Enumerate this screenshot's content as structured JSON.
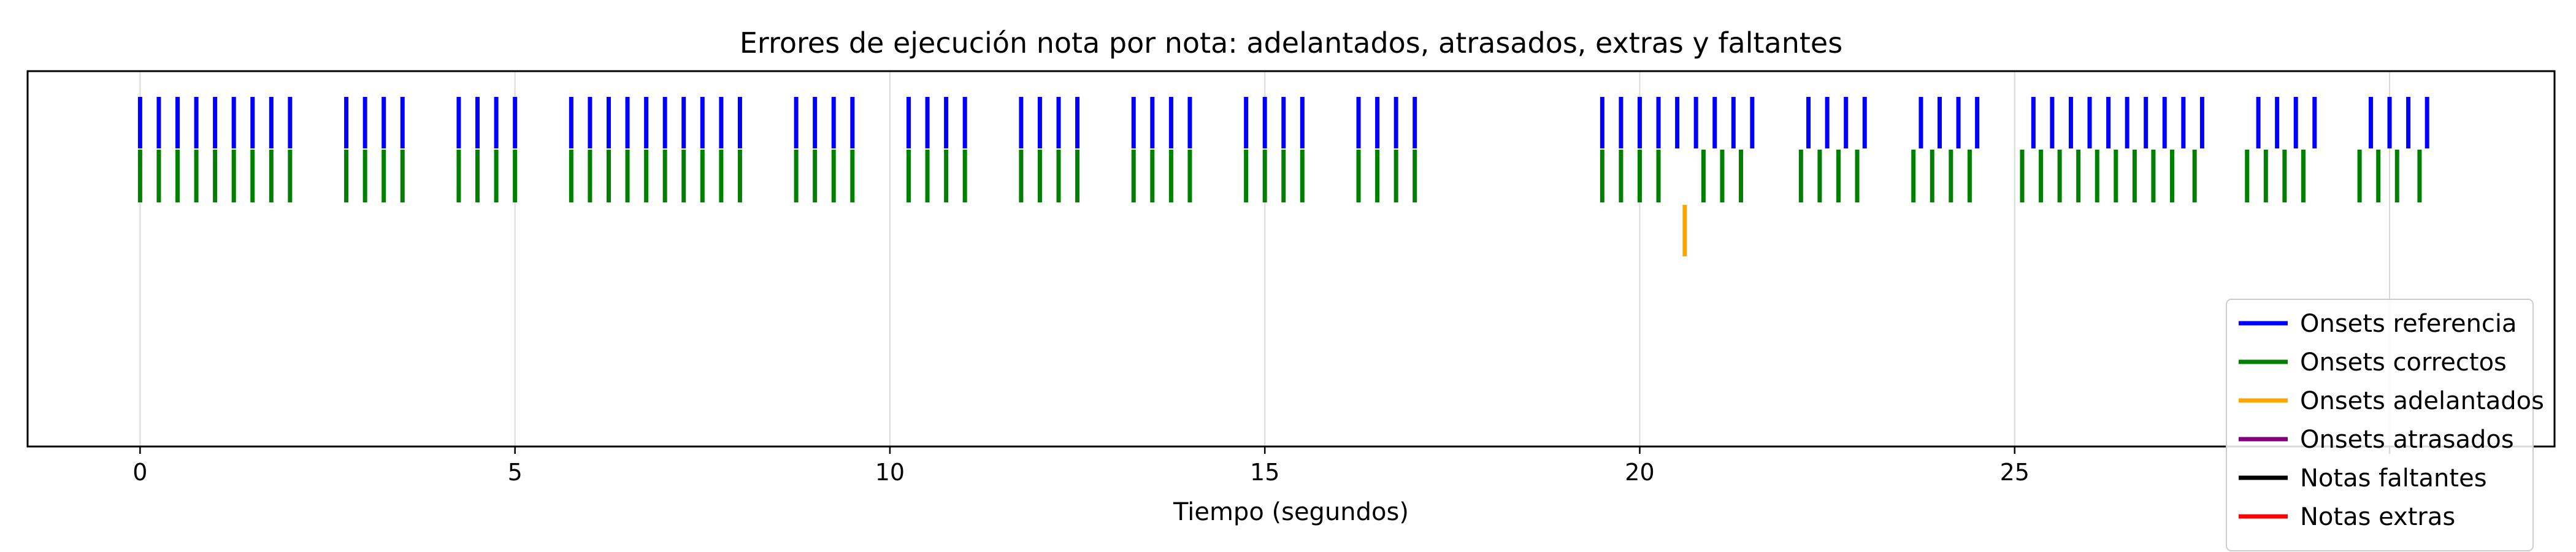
{
  "chart_data": {
    "type": "event-raster",
    "title": "Errores de ejecución nota por nota: adelantados, atrasados, extras y faltantes",
    "xlabel": "Tiempo (segundos)",
    "ylabel": "",
    "xlim": [
      -1.5,
      32.2
    ],
    "xticks": [
      0,
      5,
      10,
      15,
      20,
      25,
      30
    ],
    "xtick_labels": [
      "0",
      "5",
      "10",
      "15",
      "20",
      "25",
      ""
    ],
    "grid": "vertical",
    "legend_position": "bottom-right",
    "colors": {
      "reference": "#0000ff",
      "correct": "#008000",
      "early": "#ffa500",
      "late": "#800080",
      "missing": "#000000",
      "extra": "#ff0000"
    },
    "series": [
      {
        "key": "reference",
        "name": "Onsets referencia",
        "color": "#0000ff",
        "x": [
          0.0,
          0.25,
          0.5,
          0.75,
          1.0,
          1.25,
          1.5,
          1.75,
          2.0,
          2.75,
          3.0,
          3.25,
          3.5,
          4.25,
          4.5,
          4.75,
          5.0,
          5.75,
          6.0,
          6.25,
          6.5,
          6.75,
          7.0,
          7.25,
          7.5,
          7.75,
          8.0,
          8.75,
          9.0,
          9.25,
          9.5,
          10.25,
          10.5,
          10.75,
          11.0,
          11.75,
          12.0,
          12.25,
          12.5,
          13.25,
          13.5,
          13.75,
          14.0,
          14.75,
          15.0,
          15.25,
          15.5,
          16.25,
          16.5,
          16.75,
          17.0,
          19.5,
          19.75,
          20.0,
          20.25,
          20.5,
          20.75,
          21.0,
          21.25,
          21.5,
          22.25,
          22.5,
          22.75,
          23.0,
          23.75,
          24.0,
          24.25,
          24.5,
          25.25,
          25.5,
          25.75,
          26.0,
          26.25,
          26.5,
          26.75,
          27.0,
          27.25,
          27.5,
          28.25,
          28.5,
          28.75,
          29.0,
          29.75,
          30.0,
          30.25,
          30.5
        ]
      },
      {
        "key": "correct",
        "name": "Onsets correctos",
        "color": "#008000",
        "x": [
          0.0,
          0.25,
          0.5,
          0.75,
          1.0,
          1.25,
          1.5,
          1.75,
          2.0,
          2.75,
          3.0,
          3.25,
          3.5,
          4.25,
          4.5,
          4.75,
          5.0,
          5.75,
          6.0,
          6.25,
          6.5,
          6.75,
          7.0,
          7.25,
          7.5,
          7.75,
          8.0,
          8.75,
          9.0,
          9.25,
          9.5,
          10.25,
          10.5,
          10.75,
          11.0,
          11.75,
          12.0,
          12.25,
          12.5,
          13.25,
          13.5,
          13.75,
          14.0,
          14.75,
          15.0,
          15.25,
          15.5,
          16.25,
          16.5,
          16.75,
          17.0,
          19.5,
          19.75,
          20.0,
          20.25,
          20.85,
          21.1,
          21.35,
          22.15,
          22.4,
          22.65,
          22.9,
          23.65,
          23.9,
          24.15,
          24.4,
          25.1,
          25.35,
          25.6,
          25.85,
          26.1,
          26.35,
          26.6,
          26.85,
          27.1,
          27.4,
          28.1,
          28.35,
          28.6,
          28.85,
          29.6,
          29.85,
          30.1,
          30.4
        ]
      },
      {
        "key": "early",
        "name": "Onsets adelantados",
        "color": "#ffa500",
        "x": [
          20.6
        ]
      },
      {
        "key": "late",
        "name": "Onsets atrasados",
        "color": "#800080",
        "x": []
      },
      {
        "key": "missing",
        "name": "Notas faltantes",
        "color": "#000000",
        "x": []
      },
      {
        "key": "extra",
        "name": "Notas extras",
        "color": "#ff0000",
        "x": []
      }
    ]
  }
}
